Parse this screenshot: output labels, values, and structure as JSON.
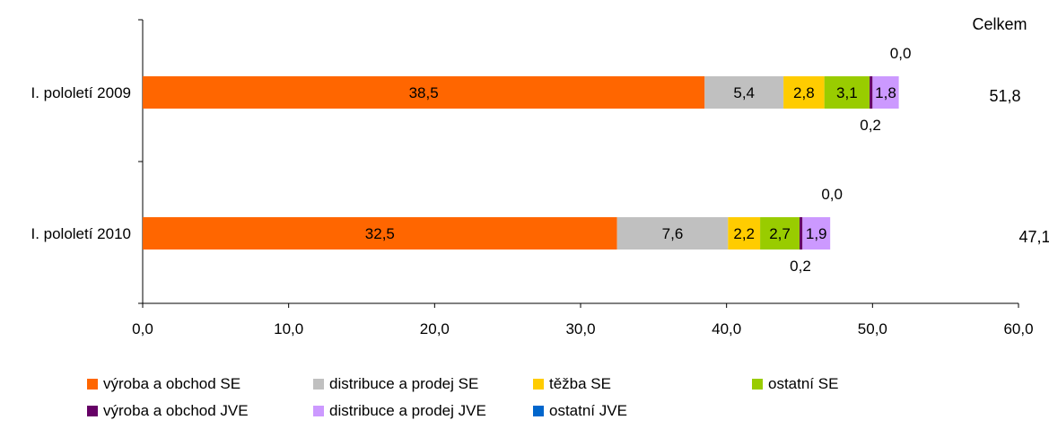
{
  "chart_data": {
    "type": "bar",
    "orientation": "horizontal",
    "stacked": true,
    "categories": [
      "I. pololetí 2009",
      "I. pololetí 2010"
    ],
    "series": [
      {
        "name": "výroba a obchod SE",
        "color": "#FF6600",
        "values": [
          38.5,
          32.5
        ],
        "labels": [
          "38,5",
          "32,5"
        ]
      },
      {
        "name": "distribuce a prodej SE",
        "color": "#C0C0C0",
        "values": [
          5.4,
          7.6
        ],
        "labels": [
          "5,4",
          "7,6"
        ]
      },
      {
        "name": "těžba SE",
        "color": "#FFCC00",
        "values": [
          2.8,
          2.2
        ],
        "labels": [
          "2,8",
          "2,2"
        ]
      },
      {
        "name": "ostatní SE",
        "color": "#99CC00",
        "values": [
          3.1,
          2.7
        ],
        "labels": [
          "3,1",
          "2,7"
        ]
      },
      {
        "name": "výroba a obchod JVE",
        "color": "#660066",
        "values": [
          0.2,
          0.2
        ],
        "labels": [
          "0,2",
          "0,2"
        ]
      },
      {
        "name": "distribuce a prodej JVE",
        "color": "#CC99FF",
        "values": [
          1.8,
          1.9
        ],
        "labels": [
          "1,8",
          "1,9"
        ]
      },
      {
        "name": "ostatní JVE",
        "color": "#0066CC",
        "values": [
          0.0,
          0.0
        ],
        "labels": [
          "0,0",
          "0,0"
        ]
      }
    ],
    "totals_header": "Celkem",
    "totals": [
      "51,8",
      "47,1"
    ],
    "xlim": [
      0,
      60
    ],
    "xticks": [
      "0,0",
      "10,0",
      "20,0",
      "30,0",
      "40,0",
      "50,0",
      "60,0"
    ],
    "grid": false,
    "legend_position": "bottom"
  }
}
